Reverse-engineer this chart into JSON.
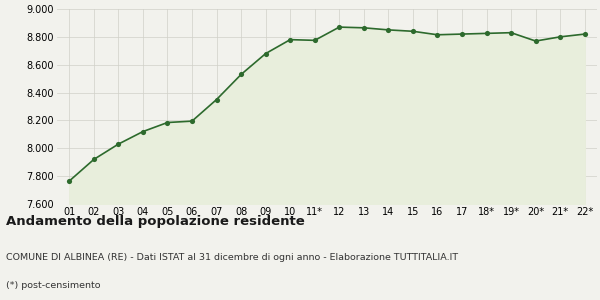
{
  "x_labels": [
    "01",
    "02",
    "03",
    "04",
    "05",
    "06",
    "07",
    "08",
    "09",
    "10",
    "11*",
    "12",
    "13",
    "14",
    "15",
    "16",
    "17",
    "18*",
    "19*",
    "20*",
    "21*",
    "22*"
  ],
  "y_values": [
    7765,
    7920,
    8030,
    8120,
    8185,
    8195,
    8350,
    8530,
    8680,
    8780,
    8775,
    8870,
    8865,
    8850,
    8840,
    8815,
    8820,
    8825,
    8830,
    8770,
    8800,
    8820
  ],
  "line_color": "#2d6a2d",
  "fill_color": "#e8eedc",
  "marker_color": "#2d6a2d",
  "bg_color": "#f2f2ed",
  "grid_color": "#d0d0c8",
  "ylim": [
    7600,
    9000
  ],
  "yticks": [
    7600,
    7800,
    8000,
    8200,
    8400,
    8600,
    8800,
    9000
  ],
  "title": "Andamento della popolazione residente",
  "subtitle": "COMUNE DI ALBINEA (RE) - Dati ISTAT al 31 dicembre di ogni anno - Elaborazione TUTTITALIA.IT",
  "footnote": "(*) post-censimento",
  "title_fontsize": 9.5,
  "subtitle_fontsize": 6.8,
  "footnote_fontsize": 6.8,
  "tick_fontsize": 7.0
}
